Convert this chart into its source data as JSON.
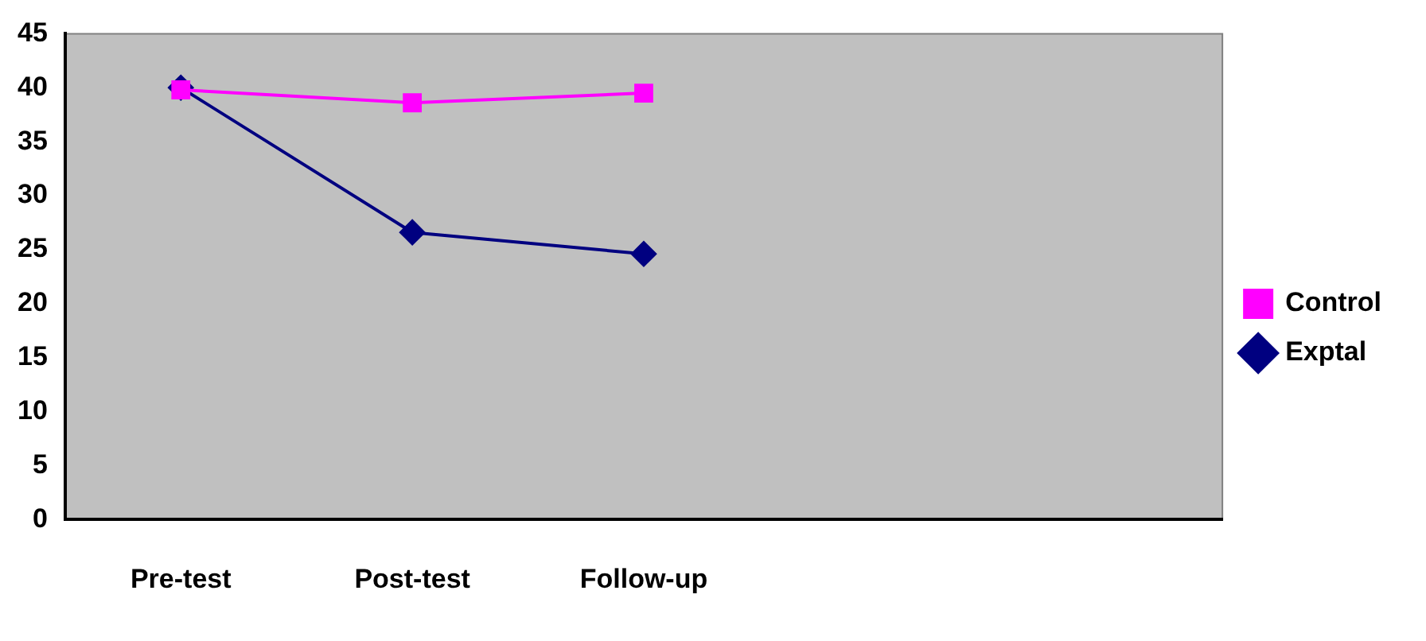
{
  "chart_data": {
    "type": "line",
    "categories": [
      "Pre-test",
      "Post-test",
      "Follow-up",
      null,
      null
    ],
    "series": [
      {
        "name": "Exptal",
        "color": "#000080",
        "values": [
          40,
          26.6,
          24.6,
          null,
          null
        ],
        "marker": "diamond"
      },
      {
        "name": "Control",
        "color": "#ff00ff",
        "values": [
          39.8,
          38.6,
          39.5,
          null,
          null
        ],
        "marker": "square"
      }
    ],
    "ylim": [
      0,
      45
    ],
    "yticks": [
      0,
      5,
      10,
      15,
      20,
      25,
      30,
      35,
      40,
      45
    ],
    "grid": false,
    "legend": "right",
    "line_style": "solid"
  }
}
